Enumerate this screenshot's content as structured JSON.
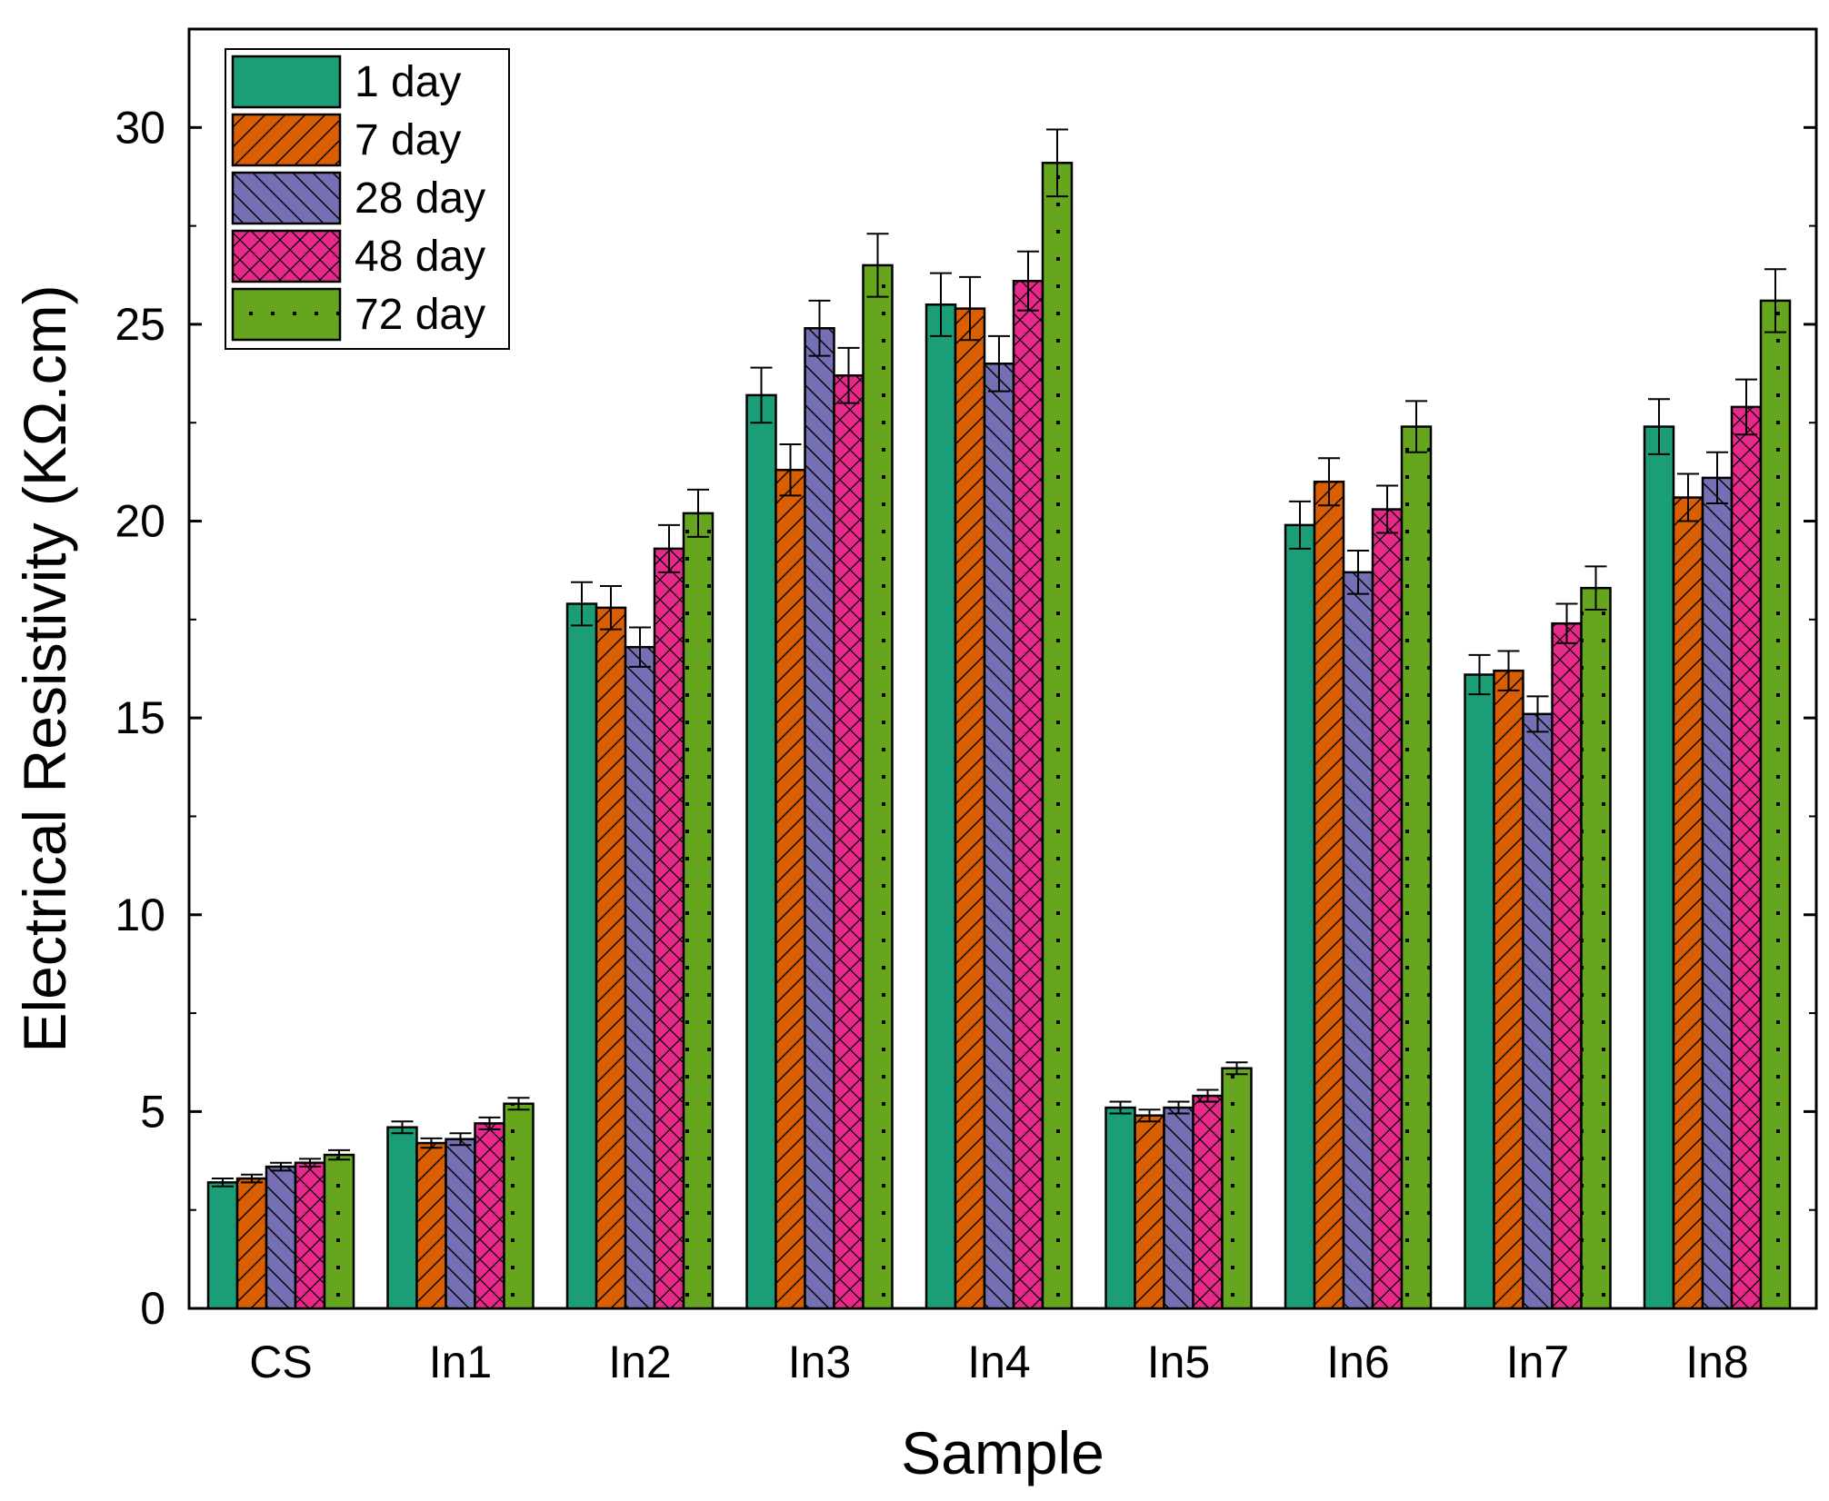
{
  "chart_data": {
    "type": "bar",
    "title": "",
    "xlabel": "Sample",
    "ylabel": "Electrical Resistivity (KΩ.cm)",
    "ylim": [
      0,
      32.5
    ],
    "yticks": [
      0,
      5,
      10,
      15,
      20,
      25,
      30
    ],
    "categories": [
      "CS",
      "In1",
      "In2",
      "In3",
      "In4",
      "In5",
      "In6",
      "In7",
      "In8"
    ],
    "legend_position": "top-left",
    "grid": false,
    "series": [
      {
        "name": "1 day",
        "color": "#1b9e77",
        "pattern": "solid",
        "values": [
          3.2,
          4.6,
          17.9,
          23.2,
          25.5,
          5.1,
          19.9,
          16.1,
          22.4
        ],
        "errors": [
          0.1,
          0.15,
          0.55,
          0.7,
          0.8,
          0.15,
          0.6,
          0.5,
          0.7
        ]
      },
      {
        "name": "7 day",
        "color": "#d95f02",
        "pattern": "forward-diagonal",
        "values": [
          3.3,
          4.2,
          17.8,
          21.3,
          25.4,
          4.9,
          21.0,
          16.2,
          20.6
        ],
        "errors": [
          0.1,
          0.12,
          0.55,
          0.65,
          0.8,
          0.15,
          0.6,
          0.5,
          0.6
        ]
      },
      {
        "name": "28 day",
        "color": "#7570b3",
        "pattern": "backward-diagonal",
        "values": [
          3.6,
          4.3,
          16.8,
          24.9,
          24.0,
          5.1,
          18.7,
          15.1,
          21.1
        ],
        "errors": [
          0.1,
          0.15,
          0.5,
          0.7,
          0.7,
          0.15,
          0.55,
          0.45,
          0.65
        ]
      },
      {
        "name": "48 day",
        "color": "#e7298a",
        "pattern": "crosshatch",
        "values": [
          3.7,
          4.7,
          19.3,
          23.7,
          26.1,
          5.4,
          20.3,
          17.4,
          22.9
        ],
        "errors": [
          0.1,
          0.15,
          0.6,
          0.7,
          0.75,
          0.15,
          0.6,
          0.5,
          0.7
        ]
      },
      {
        "name": "72 day",
        "color": "#66a61e",
        "pattern": "dots",
        "values": [
          3.9,
          5.2,
          20.2,
          26.5,
          29.1,
          6.1,
          22.4,
          18.3,
          25.6
        ],
        "errors": [
          0.12,
          0.15,
          0.6,
          0.8,
          0.85,
          0.15,
          0.65,
          0.55,
          0.8
        ]
      }
    ]
  }
}
